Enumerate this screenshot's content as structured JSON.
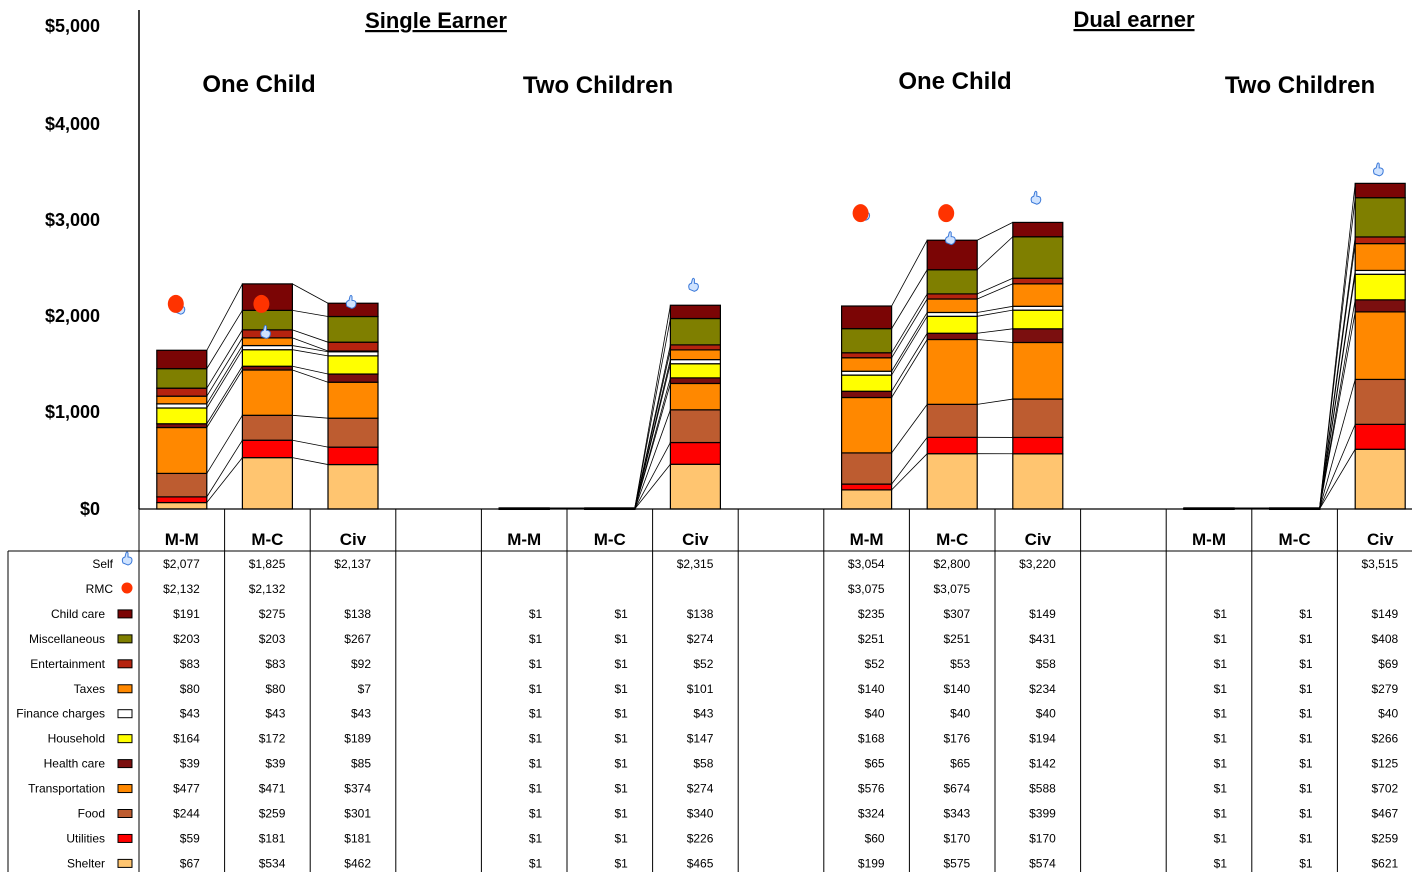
{
  "chart_data": {
    "type": "bar",
    "stacked": true,
    "ylim": [
      0,
      5000
    ],
    "yticks": [
      "$0",
      "$1,000",
      "$2,000",
      "$3,000",
      "$4,000",
      "$5,000"
    ],
    "groups": [
      {
        "label": "Single Earner",
        "subgroups": [
          "One Child",
          "Two Children"
        ]
      },
      {
        "label": "Dual earner",
        "subgroups": [
          "One Child",
          "Two Children"
        ]
      }
    ],
    "categories": [
      "M-M",
      "M-C",
      "Civ",
      "",
      "M-M",
      "M-C",
      "Civ",
      "",
      "M-M",
      "M-C",
      "Civ",
      "",
      "M-M",
      "M-C",
      "Civ"
    ],
    "series": [
      {
        "name": "Shelter",
        "color": "#FFC570",
        "values": [
          67,
          534,
          462,
          null,
          1,
          1,
          465,
          null,
          199,
          575,
          574,
          null,
          1,
          1,
          621
        ],
        "labels": [
          "$67",
          "$534",
          "$462",
          "",
          "$1",
          "$1",
          "$465",
          "",
          "$199",
          "$575",
          "$574",
          "",
          "$1",
          "$1",
          "$621"
        ]
      },
      {
        "name": "Utilities",
        "color": "#FF0000",
        "values": [
          59,
          181,
          181,
          null,
          1,
          1,
          226,
          null,
          60,
          170,
          170,
          null,
          1,
          1,
          259
        ],
        "labels": [
          "$59",
          "$181",
          "$181",
          "",
          "$1",
          "$1",
          "$226",
          "",
          "$60",
          "$170",
          "$170",
          "",
          "$1",
          "$1",
          "$259"
        ]
      },
      {
        "name": "Food",
        "color": "#BD5C30",
        "values": [
          244,
          259,
          301,
          null,
          1,
          1,
          340,
          null,
          324,
          343,
          399,
          null,
          1,
          1,
          467
        ],
        "labels": [
          "$244",
          "$259",
          "$301",
          "",
          "$1",
          "$1",
          "$340",
          "",
          "$324",
          "$343",
          "$399",
          "",
          "$1",
          "$1",
          "$467"
        ]
      },
      {
        "name": "Transportation",
        "color": "#FF8800",
        "values": [
          477,
          471,
          374,
          null,
          1,
          1,
          274,
          null,
          576,
          674,
          588,
          null,
          1,
          1,
          702
        ],
        "labels": [
          "$477",
          "$471",
          "$374",
          "",
          "$1",
          "$1",
          "$274",
          "",
          "$576",
          "$674",
          "$588",
          "",
          "$1",
          "$1",
          "$702"
        ]
      },
      {
        "name": "Health care",
        "color": "#7B0F0F",
        "values": [
          39,
          39,
          85,
          null,
          1,
          1,
          58,
          null,
          65,
          65,
          142,
          null,
          1,
          1,
          125
        ],
        "labels": [
          "$39",
          "$39",
          "$85",
          "",
          "$1",
          "$1",
          "$58",
          "",
          "$65",
          "$65",
          "$142",
          "",
          "$1",
          "$1",
          "$125"
        ]
      },
      {
        "name": "Household",
        "color": "#FFFF00",
        "values": [
          164,
          172,
          189,
          null,
          1,
          1,
          147,
          null,
          168,
          176,
          194,
          null,
          1,
          1,
          266
        ],
        "labels": [
          "$164",
          "$172",
          "$189",
          "",
          "$1",
          "$1",
          "$147",
          "",
          "$168",
          "$176",
          "$194",
          "",
          "$1",
          "$1",
          "$266"
        ]
      },
      {
        "name": "Finance charges",
        "color": "#FFFFFF",
        "values": [
          43,
          43,
          43,
          null,
          1,
          1,
          43,
          null,
          40,
          40,
          40,
          null,
          1,
          1,
          40
        ],
        "labels": [
          "$43",
          "$43",
          "$43",
          "",
          "$1",
          "$1",
          "$43",
          "",
          "$40",
          "$40",
          "$40",
          "",
          "$1",
          "$1",
          "$40"
        ]
      },
      {
        "name": "Taxes",
        "color": "#FF8800",
        "values": [
          80,
          80,
          7,
          null,
          1,
          1,
          101,
          null,
          140,
          140,
          234,
          null,
          1,
          1,
          279
        ],
        "labels": [
          "$80",
          "$80",
          "$7",
          "",
          "$1",
          "$1",
          "$101",
          "",
          "$140",
          "$140",
          "$234",
          "",
          "$1",
          "$1",
          "$279"
        ]
      },
      {
        "name": "Entertainment",
        "color": "#B5230F",
        "values": [
          83,
          83,
          92,
          null,
          1,
          1,
          52,
          null,
          52,
          53,
          58,
          null,
          1,
          1,
          69
        ],
        "labels": [
          "$83",
          "$83",
          "$92",
          "",
          "$1",
          "$1",
          "$52",
          "",
          "$52",
          "$53",
          "$58",
          "",
          "$1",
          "$1",
          "$69"
        ]
      },
      {
        "name": "Miscellaneous",
        "color": "#7F7F00",
        "values": [
          203,
          203,
          267,
          null,
          1,
          1,
          274,
          null,
          251,
          251,
          431,
          null,
          1,
          1,
          408
        ],
        "labels": [
          "$203",
          "$203",
          "$267",
          "",
          "$1",
          "$1",
          "$274",
          "",
          "$251",
          "$251",
          "$431",
          "",
          "$1",
          "$1",
          "$408"
        ]
      },
      {
        "name": "Child care",
        "color": "#7B0505",
        "values": [
          191,
          275,
          138,
          null,
          1,
          1,
          138,
          null,
          235,
          307,
          149,
          null,
          1,
          1,
          149
        ],
        "labels": [
          "$191",
          "$275",
          "$138",
          "",
          "$1",
          "$1",
          "$138",
          "",
          "$235",
          "$307",
          "$149",
          "",
          "$1",
          "$1",
          "$149"
        ]
      }
    ],
    "markers": [
      {
        "name": "Self",
        "marker": "hand-pointer-icon",
        "color": "#3A78D8",
        "values": [
          2077,
          1825,
          2137,
          null,
          null,
          null,
          2315,
          null,
          3054,
          2800,
          3220,
          null,
          null,
          null,
          3515
        ],
        "labels": [
          "$2,077",
          "$1,825",
          "$2,137",
          "",
          "",
          "",
          "$2,315",
          "",
          "$3,054",
          "$2,800",
          "$3,220",
          "",
          "",
          "",
          "$3,515"
        ]
      },
      {
        "name": "RMC",
        "marker": "red-dot-icon",
        "color": "#FF3300",
        "values": [
          2132,
          2132,
          null,
          null,
          null,
          null,
          null,
          null,
          3075,
          3075,
          null,
          null,
          null,
          null,
          null
        ],
        "labels": [
          "$2,132",
          "$2,132",
          "",
          "",
          "",
          "",
          "",
          "",
          "$3,075",
          "$3,075",
          "",
          "",
          "",
          "",
          ""
        ]
      }
    ],
    "grid": false,
    "legend": "table-left"
  }
}
